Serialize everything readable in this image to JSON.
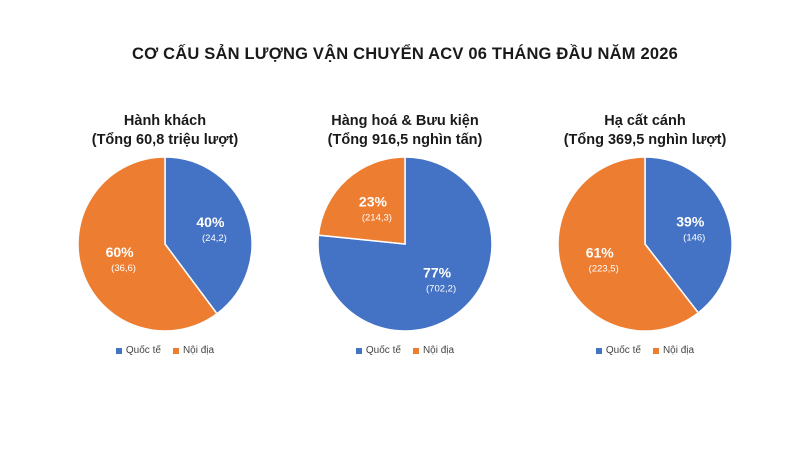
{
  "title": "CƠ CẤU SẢN LƯỢNG VẬN CHUYỂN ACV 06 THÁNG ĐẦU NĂM 2026",
  "colors": {
    "international": "#4472C4",
    "domestic": "#ED7D31"
  },
  "chart_data": [
    {
      "type": "pie",
      "title": "Hành khách",
      "subtitle": "(Tổng 60,8 triệu lượt)",
      "series": [
        {
          "name": "Quốc tế",
          "percent_label": "40%",
          "value": 24.2,
          "value_label": "(24,2)"
        },
        {
          "name": "Nội địa",
          "percent_label": "60%",
          "value": 36.6,
          "value_label": "(36,6)"
        }
      ],
      "legend": [
        "Quốc tế",
        "Nội địa"
      ]
    },
    {
      "type": "pie",
      "title": "Hàng hoá & Bưu kiện",
      "subtitle": "(Tổng 916,5 nghìn tấn)",
      "series": [
        {
          "name": "Quốc tế",
          "percent_label": "77%",
          "value": 702.2,
          "value_label": "(702,2)"
        },
        {
          "name": "Nội địa",
          "percent_label": "23%",
          "value": 214.3,
          "value_label": "(214,3)"
        }
      ],
      "legend": [
        "Quốc tế",
        "Nội địa"
      ]
    },
    {
      "type": "pie",
      "title": "Hạ cất cánh",
      "subtitle": "(Tổng 369,5 nghìn lượt)",
      "series": [
        {
          "name": "Quốc tế",
          "percent_label": "39%",
          "value": 146,
          "value_label": "(146)"
        },
        {
          "name": "Nội địa",
          "percent_label": "61%",
          "value": 223.5,
          "value_label": "(223,5)"
        }
      ],
      "legend": [
        "Quốc tế",
        "Nội địa"
      ]
    }
  ]
}
